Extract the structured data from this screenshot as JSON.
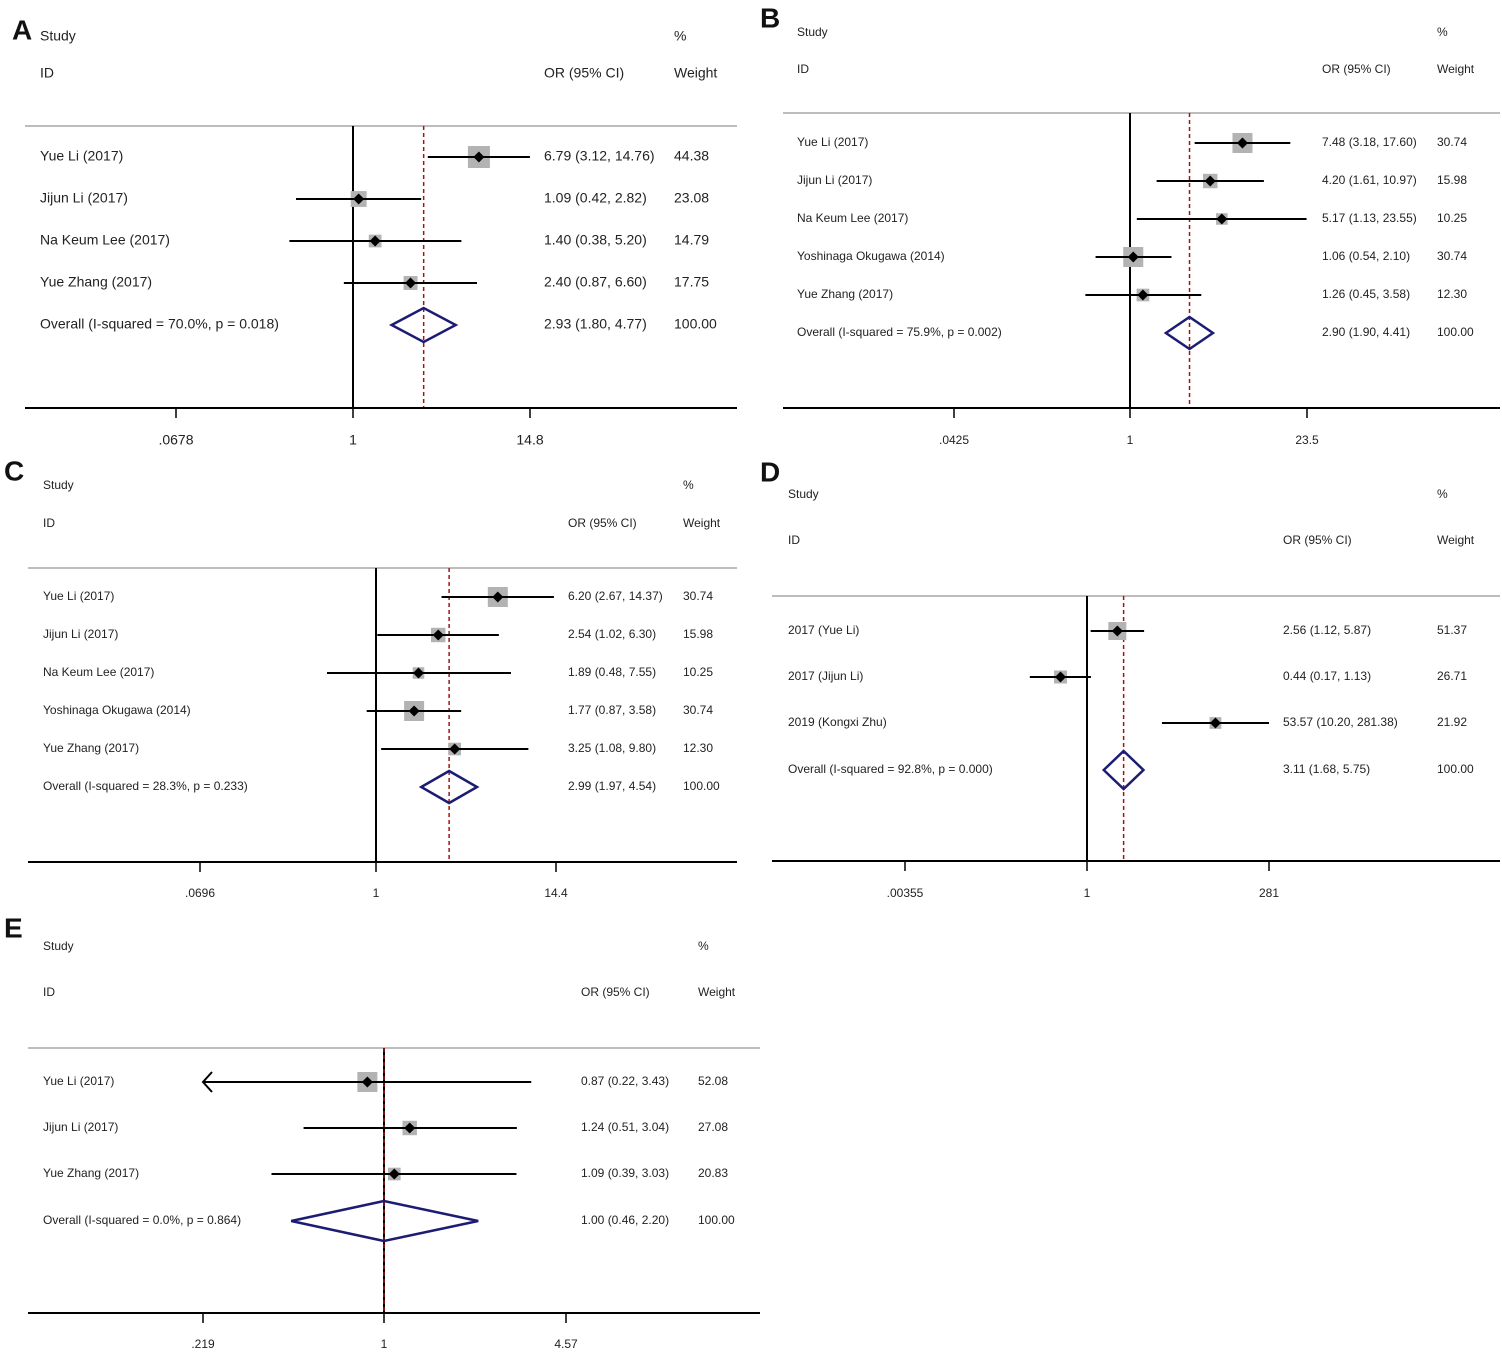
{
  "colors": {
    "box": "#b3b3b3",
    "line": "#000000",
    "diamond": "#1c1c73",
    "overall_line": "#a31515",
    "grid": "#bdbdbd"
  },
  "chart_data": [
    {
      "label": "A",
      "type": "forest",
      "header": {
        "study": "Study",
        "id": "ID",
        "or": "OR (95% CI)",
        "pct": "%",
        "weight": "Weight"
      },
      "xticks": [
        {
          "value": 0.0678,
          "label": ".0678"
        },
        {
          "value": 1,
          "label": "1"
        },
        {
          "value": 14.8,
          "label": "14.8"
        }
      ],
      "null_value": 1,
      "studies": [
        {
          "name": "Yue Li (2017)",
          "or": 6.79,
          "lo": 3.12,
          "hi": 14.76,
          "or_text": "6.79 (3.12, 14.76)",
          "weight": 44.38,
          "weight_text": "44.38"
        },
        {
          "name": "Jijun Li (2017)",
          "or": 1.09,
          "lo": 0.42,
          "hi": 2.82,
          "or_text": "1.09 (0.42, 2.82)",
          "weight": 23.08,
          "weight_text": "23.08"
        },
        {
          "name": "Na Keum Lee (2017)",
          "or": 1.4,
          "lo": 0.38,
          "hi": 5.2,
          "or_text": "1.40 (0.38, 5.20)",
          "weight": 14.79,
          "weight_text": "14.79"
        },
        {
          "name": "Yue Zhang (2017)",
          "or": 2.4,
          "lo": 0.87,
          "hi": 6.6,
          "or_text": "2.40 (0.87, 6.60)",
          "weight": 17.75,
          "weight_text": "17.75"
        }
      ],
      "overall": {
        "name": "Overall  (I-squared = 70.0%, p = 0.018)",
        "or": 2.93,
        "lo": 1.8,
        "hi": 4.77,
        "or_text": "2.93 (1.80, 4.77)",
        "weight_text": "100.00"
      }
    },
    {
      "label": "B",
      "type": "forest",
      "header": {
        "study": "Study",
        "id": "ID",
        "or": "OR (95% CI)",
        "pct": "%",
        "weight": "Weight"
      },
      "xticks": [
        {
          "value": 0.0425,
          "label": ".0425"
        },
        {
          "value": 1,
          "label": "1"
        },
        {
          "value": 23.5,
          "label": "23.5"
        }
      ],
      "null_value": 1,
      "studies": [
        {
          "name": "Yue Li (2017)",
          "or": 7.48,
          "lo": 3.18,
          "hi": 17.6,
          "or_text": "7.48 (3.18, 17.60)",
          "weight": 30.74,
          "weight_text": "30.74"
        },
        {
          "name": "Jijun Li (2017)",
          "or": 4.2,
          "lo": 1.61,
          "hi": 10.97,
          "or_text": "4.20 (1.61, 10.97)",
          "weight": 15.98,
          "weight_text": "15.98"
        },
        {
          "name": "Na Keum Lee (2017)",
          "or": 5.17,
          "lo": 1.13,
          "hi": 23.55,
          "or_text": "5.17 (1.13, 23.55)",
          "weight": 10.25,
          "weight_text": "10.25"
        },
        {
          "name": "Yoshinaga Okugawa (2014)",
          "or": 1.06,
          "lo": 0.54,
          "hi": 2.1,
          "or_text": "1.06 (0.54, 2.10)",
          "weight": 30.74,
          "weight_text": "30.74"
        },
        {
          "name": "Yue Zhang (2017)",
          "or": 1.26,
          "lo": 0.45,
          "hi": 3.58,
          "or_text": "1.26 (0.45, 3.58)",
          "weight": 12.3,
          "weight_text": "12.30"
        }
      ],
      "overall": {
        "name": "Overall  (I-squared = 75.9%, p = 0.002)",
        "or": 2.9,
        "lo": 1.9,
        "hi": 4.41,
        "or_text": "2.90 (1.90, 4.41)",
        "weight_text": "100.00"
      }
    },
    {
      "label": "C",
      "type": "forest",
      "header": {
        "study": "Study",
        "id": "ID",
        "or": "OR (95% CI)",
        "pct": "%",
        "weight": "Weight"
      },
      "xticks": [
        {
          "value": 0.0696,
          "label": ".0696"
        },
        {
          "value": 1,
          "label": "1"
        },
        {
          "value": 14.4,
          "label": "14.4"
        }
      ],
      "null_value": 1,
      "studies": [
        {
          "name": "Yue Li (2017)",
          "or": 6.2,
          "lo": 2.67,
          "hi": 14.37,
          "or_text": "6.20 (2.67, 14.37)",
          "weight": 30.74,
          "weight_text": "30.74"
        },
        {
          "name": "Jijun Li (2017)",
          "or": 2.54,
          "lo": 1.02,
          "hi": 6.3,
          "or_text": "2.54 (1.02, 6.30)",
          "weight": 15.98,
          "weight_text": "15.98"
        },
        {
          "name": "Na Keum Lee (2017)",
          "or": 1.89,
          "lo": 0.48,
          "hi": 7.55,
          "or_text": "1.89 (0.48, 7.55)",
          "weight": 10.25,
          "weight_text": "10.25"
        },
        {
          "name": "Yoshinaga Okugawa (2014)",
          "or": 1.77,
          "lo": 0.87,
          "hi": 3.58,
          "or_text": "1.77 (0.87, 3.58)",
          "weight": 30.74,
          "weight_text": "30.74"
        },
        {
          "name": "Yue Zhang (2017)",
          "or": 3.25,
          "lo": 1.08,
          "hi": 9.8,
          "or_text": "3.25 (1.08, 9.80)",
          "weight": 12.3,
          "weight_text": "12.30"
        }
      ],
      "overall": {
        "name": "Overall  (I-squared = 28.3%, p = 0.233)",
        "or": 2.99,
        "lo": 1.97,
        "hi": 4.54,
        "or_text": "2.99 (1.97, 4.54)",
        "weight_text": "100.00"
      }
    },
    {
      "label": "D",
      "type": "forest",
      "header": {
        "study": "Study",
        "id": "ID",
        "or": "OR (95% CI)",
        "pct": "%",
        "weight": "Weight"
      },
      "xticks": [
        {
          "value": 0.00355,
          "label": ".00355"
        },
        {
          "value": 1,
          "label": "1"
        },
        {
          "value": 281,
          "label": "281"
        }
      ],
      "null_value": 1,
      "studies": [
        {
          "name": "2017 (Yue Li)",
          "or": 2.56,
          "lo": 1.12,
          "hi": 5.87,
          "or_text": "2.56 (1.12, 5.87)",
          "weight": 51.37,
          "weight_text": "51.37"
        },
        {
          "name": "2017 (Jijun Li)",
          "or": 0.44,
          "lo": 0.17,
          "hi": 1.13,
          "or_text": "0.44 (0.17, 1.13)",
          "weight": 26.71,
          "weight_text": "26.71"
        },
        {
          "name": "2019 (Kongxi Zhu)",
          "or": 53.57,
          "lo": 10.2,
          "hi": 281.38,
          "or_text": "53.57 (10.20, 281.38)",
          "weight": 21.92,
          "weight_text": "21.92"
        }
      ],
      "overall": {
        "name": "Overall  (I-squared = 92.8%, p = 0.000)",
        "or": 3.11,
        "lo": 1.68,
        "hi": 5.75,
        "or_text": "3.11 (1.68, 5.75)",
        "weight_text": "100.00"
      }
    },
    {
      "label": "E",
      "type": "forest",
      "header": {
        "study": "Study",
        "id": "ID",
        "or": "OR (95% CI)",
        "pct": "%",
        "weight": "Weight"
      },
      "xticks": [
        {
          "value": 0.219,
          "label": ".219"
        },
        {
          "value": 1,
          "label": "1"
        },
        {
          "value": 4.57,
          "label": "4.57"
        }
      ],
      "null_value": 1,
      "studies": [
        {
          "name": "Yue Li (2017)",
          "or": 0.87,
          "lo": 0.22,
          "hi": 3.43,
          "or_text": "0.87 (0.22, 3.43)",
          "weight": 52.08,
          "weight_text": "52.08",
          "lo_arrow": true
        },
        {
          "name": "Jijun Li (2017)",
          "or": 1.24,
          "lo": 0.51,
          "hi": 3.04,
          "or_text": "1.24 (0.51, 3.04)",
          "weight": 27.08,
          "weight_text": "27.08"
        },
        {
          "name": "Yue Zhang (2017)",
          "or": 1.09,
          "lo": 0.39,
          "hi": 3.03,
          "or_text": "1.09 (0.39, 3.03)",
          "weight": 20.83,
          "weight_text": "20.83"
        }
      ],
      "overall": {
        "name": "Overall  (I-squared = 0.0%, p = 0.864)",
        "or": 1.0,
        "lo": 0.46,
        "hi": 2.2,
        "or_text": "1.00 (0.46, 2.20)",
        "weight_text": "100.00"
      }
    }
  ]
}
